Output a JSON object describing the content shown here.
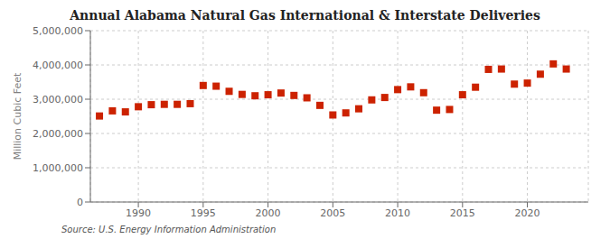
{
  "chart_data": {
    "type": "scatter",
    "title": "Annual Alabama Natural Gas International & Interstate Deliveries",
    "ylabel": "Million Cubic Feet",
    "annotations": [
      "Source: U.S. Energy Information Administration"
    ],
    "x": [
      1987,
      1988,
      1989,
      1990,
      1991,
      1992,
      1993,
      1994,
      1995,
      1996,
      1997,
      1998,
      1999,
      2000,
      2001,
      2002,
      2003,
      2004,
      2005,
      2006,
      2007,
      2008,
      2009,
      2010,
      2011,
      2012,
      2013,
      2014,
      2015,
      2016,
      2017,
      2018,
      2019,
      2020,
      2021,
      2022,
      2023
    ],
    "values": [
      2510000,
      2660000,
      2630000,
      2780000,
      2840000,
      2850000,
      2850000,
      2870000,
      3400000,
      3380000,
      3230000,
      3140000,
      3100000,
      3130000,
      3180000,
      3110000,
      3040000,
      2820000,
      2540000,
      2600000,
      2720000,
      2980000,
      3050000,
      3280000,
      3360000,
      3190000,
      2680000,
      2700000,
      3130000,
      3350000,
      3870000,
      3880000,
      3440000,
      3470000,
      3730000,
      4030000,
      3880000
    ],
    "color": "#cc2200",
    "marker": "square",
    "xlim": [
      1986.3,
      2024.7
    ],
    "xticks": [
      1990,
      1995,
      2000,
      2005,
      2010,
      2015,
      2020
    ],
    "ylim": [
      0,
      5000000
    ],
    "yticks": [
      0,
      {
        "value": 1000000,
        "label": "1,000,000"
      },
      {
        "value": 2000000,
        "label": "2,000,000"
      },
      {
        "value": 3000000,
        "label": "3,000,000"
      },
      {
        "value": 4000000,
        "label": "4,000,000"
      },
      {
        "value": 5000000,
        "label": "5,000,000"
      }
    ],
    "grid": true
  }
}
